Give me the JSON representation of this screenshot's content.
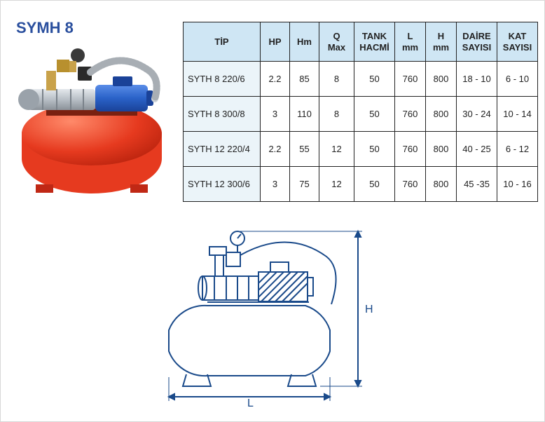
{
  "title": "SYMH 8",
  "colors": {
    "title_color": "#2a4f9e",
    "header_bg": "#cfe6f4",
    "tip_col_bg": "#ebf4f9",
    "border": "#222222",
    "tank_red": "#e63a1f",
    "pump_blue": "#2a62c8",
    "pump_steel": "#b8bfc6",
    "pump_brass": "#c9a24a",
    "hose_gray": "#cfd4d8",
    "line_color": "#1a4a8a"
  },
  "table": {
    "headers": [
      "TİP",
      "HP",
      "Hm",
      "Q\nMax",
      "TANK\nHACMİ",
      "L\nmm",
      "H\nmm",
      "DAİRE\nSAYISI",
      "KAT\nSAYISI"
    ],
    "rows": [
      [
        "SYTH 8 220/6",
        "2.2",
        "85",
        "8",
        "50",
        "760",
        "800",
        "18 - 10",
        "6 - 10"
      ],
      [
        "SYTH 8 300/8",
        "3",
        "110",
        "8",
        "50",
        "760",
        "800",
        "30 - 24",
        "10 - 14"
      ],
      [
        "SYTH 12 220/4",
        "2.2",
        "55",
        "12",
        "50",
        "760",
        "800",
        "40 - 25",
        "6 - 12"
      ],
      [
        "SYTH 12 300/6",
        "3",
        "75",
        "12",
        "50",
        "760",
        "800",
        "45 -35",
        "10 - 16"
      ]
    ]
  },
  "drawing_labels": {
    "L": "L",
    "H": "H"
  }
}
